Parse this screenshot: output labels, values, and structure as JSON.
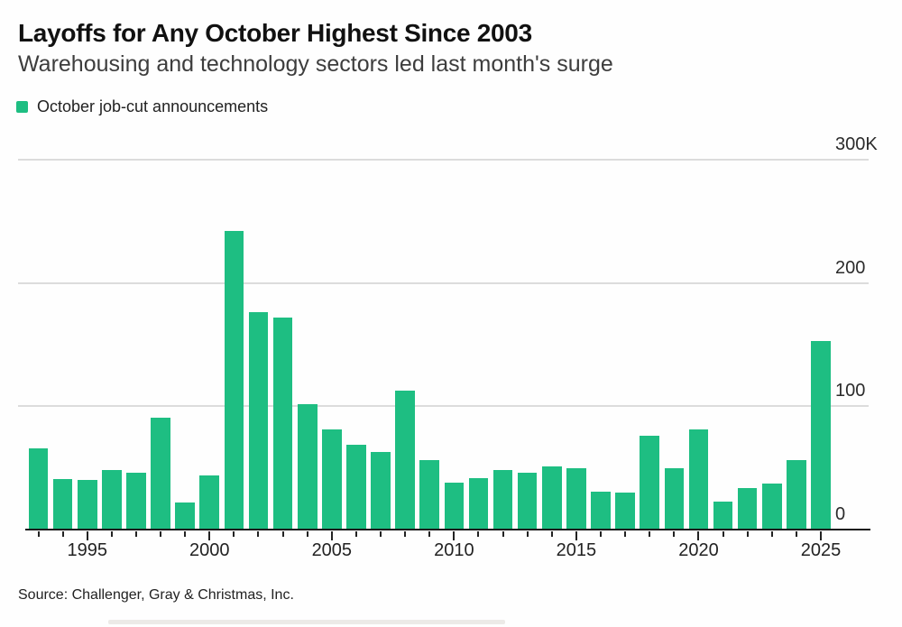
{
  "header": {
    "title": "Layoffs for Any October Highest Since 2003",
    "subtitle": "Warehousing and technology sectors led last month's surge"
  },
  "legend": {
    "label": "October job-cut announcements"
  },
  "source": "Source: Challenger, Gray & Christmas, Inc.",
  "colors": {
    "bar": "#1ebe82",
    "axis": "#1a1a1a",
    "gridline": "#dcdcdc",
    "text": "#222222",
    "background": "#fefefe"
  },
  "chart_data": {
    "type": "bar",
    "title": "Layoffs for Any October Highest Since 2003",
    "subtitle": "Warehousing and technology sectors led last month's surge",
    "series_name": "October job-cut announcements",
    "unit": "thousands of announced job cuts",
    "x": [
      1993,
      1994,
      1995,
      1996,
      1997,
      1998,
      1999,
      2000,
      2001,
      2002,
      2003,
      2004,
      2005,
      2006,
      2007,
      2008,
      2009,
      2010,
      2011,
      2012,
      2013,
      2014,
      2015,
      2016,
      2017,
      2018,
      2019,
      2020,
      2021,
      2022,
      2023,
      2024,
      2025
    ],
    "values": [
      66,
      41,
      40,
      48,
      46,
      91,
      22,
      44,
      242,
      176,
      172,
      102,
      81,
      69,
      63,
      113,
      56,
      38,
      42,
      48,
      46,
      51,
      50,
      31,
      30,
      76,
      50,
      81,
      23,
      34,
      37,
      56,
      153
    ],
    "xlabel": "",
    "ylabel": "",
    "ylim": [
      0,
      300
    ],
    "yticks": [
      {
        "value": 0,
        "label": "0"
      },
      {
        "value": 100,
        "label": "100"
      },
      {
        "value": 200,
        "label": "200"
      },
      {
        "value": 300,
        "label": "300K"
      }
    ],
    "xticks": [
      1995,
      2000,
      2005,
      2010,
      2015,
      2020,
      2025
    ],
    "grid": true,
    "axis_side": "right",
    "legend_position": "top-left"
  }
}
